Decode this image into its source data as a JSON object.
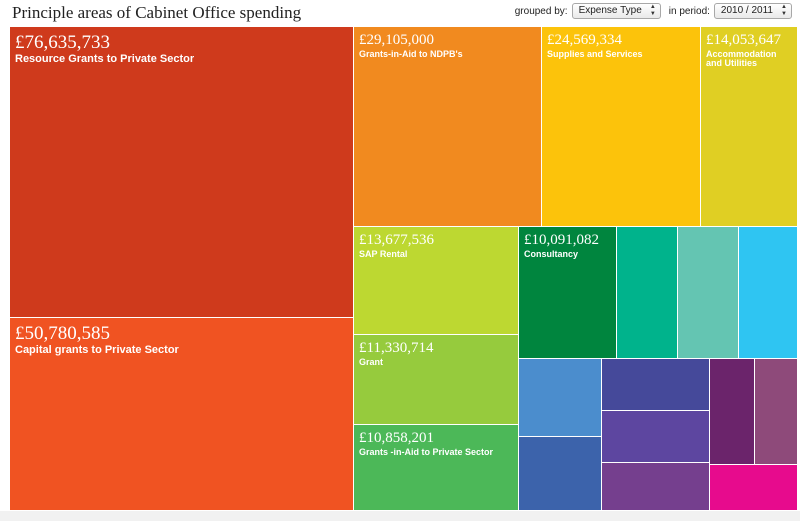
{
  "page": {
    "title": "Principle areas of Cabinet Office spending",
    "grouped_by_label": "grouped by:",
    "grouped_by_value": "Expense Type",
    "period_label": "in period:",
    "period_value": "2010 / 2011"
  },
  "tiles": [
    {
      "amount": "£76,635,733",
      "label": "Resource Grants to Private Sector",
      "color": "#cf3a1c"
    },
    {
      "amount": "£50,780,585",
      "label": "Capital grants to Private Sector",
      "color": "#f05322"
    },
    {
      "amount": "£29,105,000",
      "label": "Grants-in-Aid to NDPB's",
      "color": "#f18a1f"
    },
    {
      "amount": "£24,569,334",
      "label": "Supplies and Services",
      "color": "#fcc30b"
    },
    {
      "amount": "£14,053,647",
      "label": "Accommodation and Utilities",
      "color": "#e0cf23"
    },
    {
      "amount": "£13,677,536",
      "label": "SAP Rental",
      "color": "#bdd831"
    },
    {
      "amount": "£11,330,714",
      "label": "Grant",
      "color": "#96cb3d"
    },
    {
      "amount": "£10,858,201",
      "label": "Grants -in-Aid to Private Sector",
      "color": "#4cb858"
    },
    {
      "amount": "£10,091,082",
      "label": "Consultancy",
      "color": "#00853e"
    }
  ],
  "small_tiles": [
    {
      "color": "#00b38c"
    },
    {
      "color": "#64c5b2"
    },
    {
      "color": "#2fc5f2"
    },
    {
      "color": "#4b8dcd"
    },
    {
      "color": "#3c63ab"
    },
    {
      "color": "#45499a"
    },
    {
      "color": "#5d46a0"
    },
    {
      "color": "#753f8e"
    },
    {
      "color": "#6b246b"
    },
    {
      "color": "#8e4a7a"
    },
    {
      "color": "#e70b8d"
    }
  ]
}
